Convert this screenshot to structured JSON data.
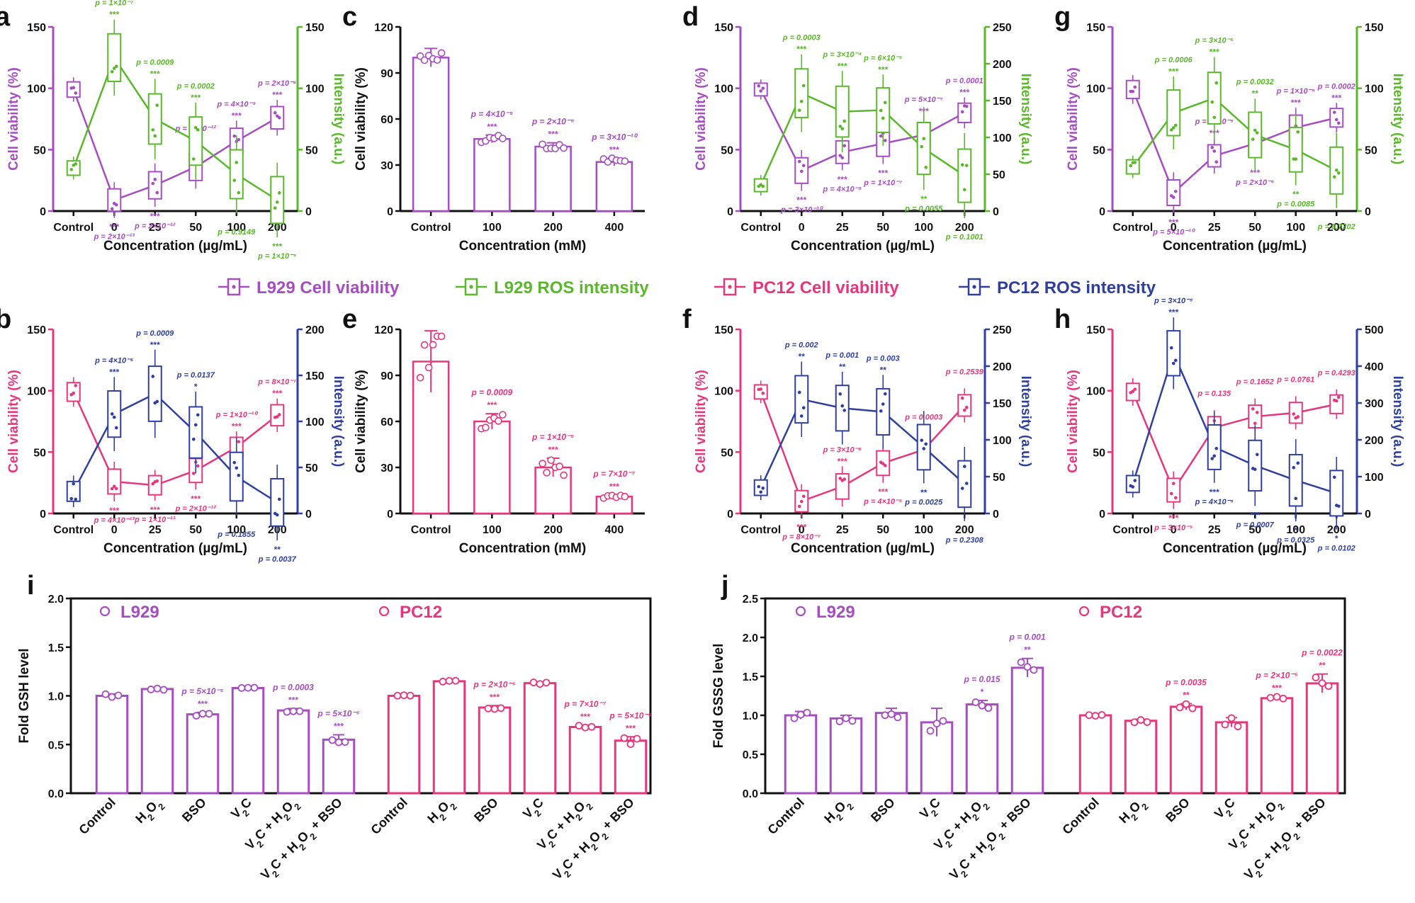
{
  "legend": {
    "items": [
      {
        "label": "L929 Cell viability",
        "color": "#a64dc2"
      },
      {
        "label": "L929 ROS intensity",
        "color": "#5ab82a"
      },
      {
        "label": "PC12 Cell viability",
        "color": "#e8367e"
      },
      {
        "label": "PC12 ROS intensity",
        "color": "#2e3fa0"
      }
    ]
  },
  "colors": {
    "purple": "#a64dc2",
    "green": "#5ab82a",
    "pink": "#e8367e",
    "navy": "#2e3fa0"
  },
  "chart_data": [
    {
      "panel": "a",
      "type": "line",
      "categories": [
        "Control",
        "0",
        "25",
        "50",
        "100",
        "200"
      ],
      "xlabel": "Concentration (µg/mL)",
      "ylabel": "Cell viability (%)",
      "ylabel_right": "Intensity (a.u.)",
      "ylim": [
        0,
        150
      ],
      "ylim_right": [
        0,
        150
      ],
      "yticks": [
        "0",
        "50",
        "100",
        "150"
      ],
      "yticks_right": [
        "0",
        "50",
        "100",
        "150"
      ],
      "series": [
        {
          "name": "L929 Cell viability",
          "values": [
            99,
            9,
            21,
            36,
            57,
            76
          ],
          "pvalues": [
            "",
            "p = 2×10⁻¹³",
            "p = 2×10⁻¹²",
            "p = 9×10⁻¹²",
            "p = 4×10⁻⁹",
            "p = 2×10⁻⁶"
          ],
          "stars": [
            "",
            "***",
            "***",
            "***",
            "***",
            "***"
          ]
        },
        {
          "name": "L929 ROS intensity",
          "values": [
            35,
            125,
            75,
            57,
            30,
            9
          ],
          "pvalues": [
            "",
            "p = 1×10⁻⁷",
            "p = 0.0009",
            "p = 0.0002",
            "p = 0.9149",
            "p = 1×10⁻⁵"
          ],
          "stars": [
            "",
            "***",
            "***",
            "***",
            "",
            "***"
          ]
        }
      ]
    },
    {
      "panel": "c",
      "type": "bar",
      "categories": [
        "Control",
        "100",
        "200",
        "400"
      ],
      "values": [
        100,
        47,
        42,
        32
      ],
      "pvalues": [
        "",
        "p = 4×10⁻⁹",
        "p = 2×10⁻⁹",
        "p = 3×10⁻¹⁰"
      ],
      "stars": [
        "",
        "***",
        "***",
        "***"
      ],
      "xlabel": "Concentration (mM)",
      "ylabel": "Cell viability (%)",
      "ylim": [
        0,
        120
      ],
      "yticks": [
        "0",
        "30",
        "60",
        "90",
        "120"
      ]
    },
    {
      "panel": "d",
      "type": "line",
      "categories": [
        "Control",
        "0",
        "25",
        "50",
        "100",
        "200"
      ],
      "xlabel": "Concentration (µg/mL)",
      "ylabel": "Cell viability (%)",
      "ylabel_right": "Intensity (a.u.)",
      "ylim": [
        0,
        150
      ],
      "ylim_right": [
        0,
        250
      ],
      "yticks": [
        "0",
        "50",
        "100",
        "150"
      ],
      "yticks_right": [
        "0",
        "50",
        "100",
        "150",
        "200",
        "250"
      ],
      "series": [
        {
          "name": "L929 Cell viability",
          "values": [
            99,
            33,
            48,
            55,
            62,
            80
          ],
          "pvalues": [
            "",
            "p = 3×10⁻¹⁰",
            "p = 4×10⁻⁸",
            "p = 1×10⁻⁷",
            "p = 5×10⁻⁷",
            "p = 0.0001"
          ],
          "stars": [
            "",
            "***",
            "***",
            "***",
            "***",
            "***"
          ]
        },
        {
          "name": "L929 ROS intensity",
          "values": [
            35,
            160,
            135,
            137,
            85,
            48
          ],
          "pvalues": [
            "",
            "p = 0.0003",
            "p = 3×10⁻⁴",
            "p = 6×10⁻⁵",
            "p = 0.0055",
            "p = 0.1001"
          ],
          "stars": [
            "",
            "***",
            "***",
            "***",
            "**",
            ""
          ]
        }
      ]
    },
    {
      "panel": "g",
      "type": "line",
      "categories": [
        "Control",
        "0",
        "25",
        "50",
        "100",
        "200"
      ],
      "xlabel": "Concentration (µg/mL)",
      "ylabel": "Cell viability (%)",
      "ylabel_right": "Intensity (a.u.)",
      "ylim": [
        0,
        150
      ],
      "ylim_right": [
        0,
        150
      ],
      "yticks": [
        "0",
        "50",
        "100",
        "150"
      ],
      "yticks_right": [
        "0",
        "50",
        "100",
        "150"
      ],
      "series": [
        {
          "name": "L929 Cell viability",
          "values": [
            99,
            15,
            45,
            55,
            68,
            76
          ],
          "pvalues": [
            "",
            "p = 5×10⁻¹⁰",
            "p = 1×10⁻⁵",
            "p = 2×10⁻⁶",
            "p = 1×10⁻⁵",
            "p = 0.0002"
          ],
          "stars": [
            "",
            "***",
            "***",
            "***",
            "***",
            "***"
          ]
        },
        {
          "name": "L929 ROS intensity",
          "values": [
            36,
            80,
            92,
            62,
            50,
            33
          ],
          "pvalues": [
            "",
            "p = 0.0006",
            "p = 3×10⁻⁶",
            "p = 0.0032",
            "p = 0.0085",
            "p = 0.7202"
          ],
          "stars": [
            "",
            "***",
            "***",
            "**",
            "**",
            ""
          ]
        }
      ]
    },
    {
      "panel": "b",
      "type": "line",
      "categories": [
        "Control",
        "0",
        "25",
        "50",
        "100",
        "200"
      ],
      "xlabel": "Concentration (µg/mL)",
      "ylabel": "Cell viability (%)",
      "ylabel_right": "Intensity (a.u.)",
      "ylim": [
        0,
        150
      ],
      "ylim_right": [
        0,
        200
      ],
      "yticks": [
        "0",
        "50",
        "100",
        "150"
      ],
      "yticks_right": [
        "0",
        "50",
        "100",
        "150",
        "200"
      ],
      "series": [
        {
          "name": "PC12 Cell viability",
          "values": [
            99,
            26,
            23,
            35,
            54,
            80
          ],
          "pvalues": [
            "",
            "p = 4×10⁻¹³",
            "p = 1×10⁻¹³",
            "p = 2×10⁻¹²",
            "p = 1×10⁻¹⁰",
            "p = 8×10⁻⁷"
          ],
          "stars": [
            "",
            "***",
            "***",
            "***",
            "***",
            "***"
          ]
        },
        {
          "name": "PC12 ROS intensity",
          "values": [
            24,
            108,
            130,
            88,
            40,
            12
          ],
          "pvalues": [
            "",
            "p = 4×10⁻⁶",
            "p = 0.0009",
            "p = 0.0137",
            "p = 0.1855",
            "p = 0.0037"
          ],
          "stars": [
            "",
            "***",
            "***",
            "*",
            "",
            "**"
          ]
        }
      ]
    },
    {
      "panel": "e",
      "type": "bar",
      "categories": [
        "Control",
        "100",
        "200",
        "400"
      ],
      "values": [
        99,
        60,
        30,
        11
      ],
      "pvalues": [
        "",
        "p = 0.0009",
        "p = 1×10⁻⁵",
        "p = 7×10⁻⁷"
      ],
      "stars": [
        "",
        "***",
        "***",
        "***"
      ],
      "xlabel": "Concentration (mM)",
      "ylabel": "Cell viability (%)",
      "ylim": [
        0,
        120
      ],
      "yticks": [
        "0",
        "30",
        "60",
        "90",
        "120"
      ]
    },
    {
      "panel": "f",
      "type": "line",
      "categories": [
        "Control",
        "0",
        "25",
        "50",
        "100",
        "200"
      ],
      "xlabel": "Concentration (µg/mL)",
      "ylabel": "Cell viability (%)",
      "ylabel_right": "Intensity (a.u.)",
      "ylim": [
        0,
        150
      ],
      "ylim_right": [
        0,
        250
      ],
      "yticks": [
        "0",
        "50",
        "100",
        "150"
      ],
      "yticks_right": [
        "0",
        "50",
        "100",
        "150",
        "200",
        "250"
      ],
      "series": [
        {
          "name": "PC12 Cell viability",
          "values": [
            99,
            10,
            22,
            41,
            52,
            88
          ],
          "pvalues": [
            "",
            "p = 8×10⁻⁷",
            "p = 3×10⁻⁶",
            "p = 4×10⁻⁵",
            "p = 0.0003",
            "p = 0.2539"
          ],
          "stars": [
            "",
            "***",
            "***",
            "***",
            "***",
            ""
          ]
        },
        {
          "name": "PC12 ROS intensity",
          "values": [
            35,
            155,
            143,
            138,
            90,
            40
          ],
          "pvalues": [
            "",
            "p = 0.002",
            "p = 0.001",
            "p = 0.003",
            "p = 0.0025",
            "p = 0.2308"
          ],
          "stars": [
            "",
            "**",
            "**",
            "**",
            "**",
            ""
          ]
        }
      ]
    },
    {
      "panel": "h",
      "type": "line",
      "categories": [
        "Control",
        "0",
        "25",
        "50",
        "100",
        "200"
      ],
      "xlabel": "Concentration (µg/mL)",
      "ylabel": "Cell viability (%)",
      "ylabel_right": "Intensity (a.u.)",
      "ylim": [
        0,
        150
      ],
      "ylim_right": [
        0,
        500
      ],
      "yticks": [
        "0",
        "50",
        "100",
        "150"
      ],
      "yticks_right": [
        "0",
        "100",
        "200",
        "300",
        "400",
        "500"
      ],
      "series": [
        {
          "name": "PC12 Cell viability",
          "values": [
            99,
            19,
            70,
            79,
            82,
            89
          ],
          "pvalues": [
            "",
            "p = 3×10⁻⁵",
            "p = 0.135",
            "p = 0.1652",
            "p = 0.0761",
            "p = 0.4293"
          ],
          "stars": [
            "",
            "***",
            "",
            "",
            "",
            ""
          ]
        },
        {
          "name": "PC12 ROS intensity",
          "values": [
            80,
            435,
            180,
            130,
            90,
            55
          ],
          "pvalues": [
            "",
            "p = 3×10⁻⁸",
            "p = 4×10⁻⁵",
            "p = 0.0007",
            "p = 0.0325",
            "p = 0.0102"
          ],
          "stars": [
            "",
            "***",
            "***",
            "***",
            "*",
            "*"
          ]
        }
      ]
    },
    {
      "panel": "i",
      "type": "bar",
      "ylabel": "Fold GSH level",
      "ylim": [
        0,
        2.0
      ],
      "yticks": [
        "0.0",
        "0.5",
        "1.0",
        "1.5",
        "2.0"
      ],
      "categories": [
        "Control",
        "H₂O₂",
        "BSO",
        "V₂C",
        "V₂C + H₂O₂",
        "V₂C + H₂O₂ + BSO"
      ],
      "series": [
        {
          "name": "L929",
          "values": [
            1.0,
            1.07,
            0.81,
            1.08,
            0.85,
            0.55
          ],
          "pvalues": [
            "",
            "",
            "p = 5×10⁻⁵",
            "",
            "p = 0.0003",
            "p = 5×10⁻⁵"
          ],
          "stars": [
            "",
            "",
            "***",
            "",
            "***",
            "***"
          ]
        },
        {
          "name": "PC12",
          "values": [
            1.0,
            1.15,
            0.88,
            1.13,
            0.68,
            0.54
          ],
          "pvalues": [
            "",
            "",
            "p = 2×10⁻⁵",
            "",
            "p = 7×10⁻⁷",
            "p = 5×10⁻⁵"
          ],
          "stars": [
            "",
            "",
            "***",
            "",
            "***",
            "***"
          ]
        }
      ]
    },
    {
      "panel": "j",
      "type": "bar",
      "ylabel": "Fold GSSG level",
      "ylim": [
        0,
        2.5
      ],
      "yticks": [
        "0.0",
        "0.5",
        "1.0",
        "1.5",
        "2.0",
        "2.5"
      ],
      "categories": [
        "Control",
        "H₂O₂",
        "BSO",
        "V₂C",
        "V₂C + H₂O₂",
        "V₂C + H₂O₂ + BSO"
      ],
      "series": [
        {
          "name": "L929",
          "values": [
            1.0,
            0.96,
            1.03,
            0.91,
            1.14,
            1.61
          ],
          "pvalues": [
            "",
            "",
            "",
            "",
            "p = 0.015",
            "p = 0.001"
          ],
          "stars": [
            "",
            "",
            "",
            "",
            "*",
            "**"
          ]
        },
        {
          "name": "PC12",
          "values": [
            1.0,
            0.93,
            1.11,
            0.91,
            1.22,
            1.41
          ],
          "pvalues": [
            "",
            "",
            "p = 0.0035",
            "",
            "p = 2×10⁻⁵",
            "p = 0.0022"
          ],
          "stars": [
            "",
            "",
            "**",
            "",
            "***",
            "**"
          ]
        }
      ]
    }
  ]
}
